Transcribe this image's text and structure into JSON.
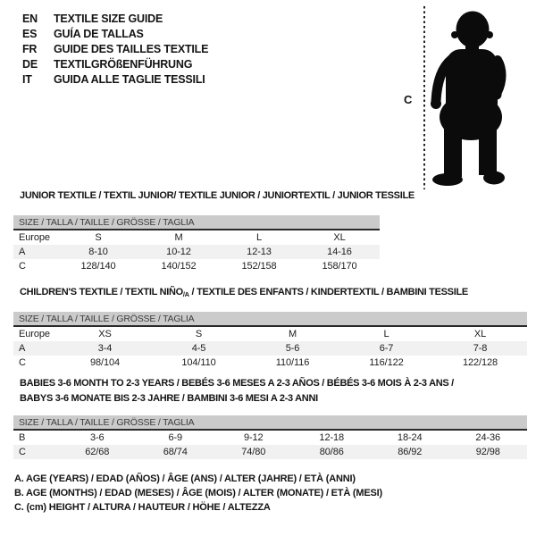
{
  "languages": [
    {
      "code": "EN",
      "title": "TEXTILE SIZE GUIDE"
    },
    {
      "code": "ES",
      "title": "GUÍA DE TALLAS"
    },
    {
      "code": "FR",
      "title": "GUIDE DES TAILLES TEXTILE"
    },
    {
      "code": "DE",
      "title": "TEXTILGRÖßENFÜHRUNG"
    },
    {
      "code": "IT",
      "title": "GUIDA ALLE TAGLIE TESSILI"
    }
  ],
  "figure": {
    "measure_label": "C",
    "image": "standing toddler silhouette with dotted height reference line"
  },
  "tables": [
    {
      "title": {
        "prefix": "JUNIOR TEXTILE / TEXTIL JUNIOR/ TEXTILE JUNIOR / JUNIORTEXTIL / JUNIOR TESSILE",
        "sub": "",
        "suffix": "",
        "line2": ""
      },
      "header": "SIZE / TALLA / TAILLE / GRÖSSE / TAGLIA",
      "rows": [
        {
          "label": "Europe",
          "cells": [
            "S",
            "M",
            "L",
            "XL"
          ]
        },
        {
          "label": "A",
          "cells": [
            "8-10",
            "10-12",
            "12-13",
            "14-16"
          ]
        },
        {
          "label": "C",
          "cells": [
            "128/140",
            "140/152",
            "152/158",
            "158/170"
          ]
        }
      ]
    },
    {
      "title": {
        "prefix": "CHILDREN'S TEXTILE / TEXTIL NIÑO",
        "sub": "/A",
        "suffix": " / TEXTILE DES ENFANTS / KINDERTEXTIL / BAMBINI TESSILE",
        "line2": ""
      },
      "header": "SIZE / TALLA / TAILLE / GRÖSSE / TAGLIA",
      "rows": [
        {
          "label": "Europe",
          "cells": [
            "XS",
            "S",
            "M",
            "L",
            "XL"
          ]
        },
        {
          "label": "A",
          "cells": [
            "3-4",
            "4-5",
            "5-6",
            "6-7",
            "7-8"
          ]
        },
        {
          "label": "C",
          "cells": [
            "98/104",
            "104/110",
            "110/116",
            "116/122",
            "122/128"
          ]
        }
      ]
    },
    {
      "title": {
        "prefix": "BABIES 3-6 MONTH TO 2-3 YEARS / BEBÉS 3-6 MESES A 2-3 AÑOS / BÉBÉS 3-6 MOIS À 2-3 ANS /",
        "sub": "",
        "suffix": "",
        "line2": "BABYS 3-6 MONATE BIS 2-3 JAHRE / BAMBINI 3-6 MESI A 2-3 ANNI"
      },
      "header": "SIZE / TALLA / TAILLE / GRÖSSE / TAGLIA",
      "rows": [
        {
          "label": "B",
          "cells": [
            "3-6",
            "6-9",
            "9-12",
            "12-18",
            "18-24",
            "24-36"
          ]
        },
        {
          "label": "C",
          "cells": [
            "62/68",
            "68/74",
            "74/80",
            "80/86",
            "86/92",
            "92/98"
          ]
        }
      ]
    }
  ],
  "notes": [
    "A. AGE (YEARS) / EDAD (AÑOS) / ÂGE (ANS) / ALTER (JAHRE) / ETÀ (ANNI)",
    "B. AGE (MONTHS) / EDAD (MESES) / ÂGE (MOIS) / ALTER (MONATE) / ETÀ (MESI)",
    "C. (cm) HEIGHT / ALTURA / HAUTEUR / HÖHE / ALTEZZA"
  ],
  "colors": {
    "background": "#ffffff",
    "text": "#141414",
    "header_bar": "#cbcbcb",
    "row_shaded": "#f1f1f1",
    "divider": "#2a2a2a",
    "silhouette": "#0b0b0b"
  }
}
